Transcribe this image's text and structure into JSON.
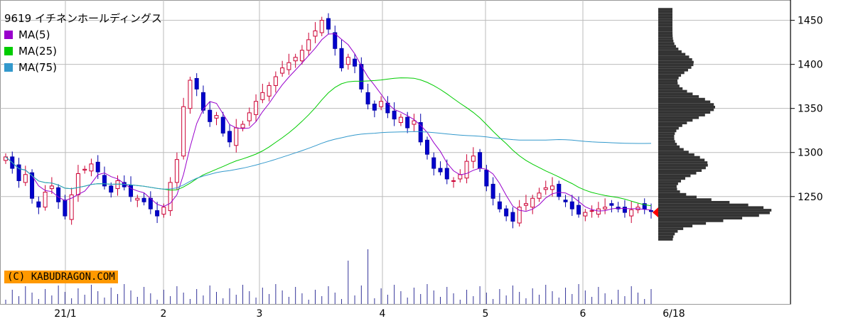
{
  "title": "9619 イチネンホールディングス",
  "credit": "(C) KABUDRAGON.COM",
  "legend": [
    {
      "label": "MA(5)",
      "color": "#9900cc"
    },
    {
      "label": "MA(25)",
      "color": "#00cc00"
    },
    {
      "label": "MA(75)",
      "color": "#3399cc"
    }
  ],
  "chart_data": {
    "type": "candlestick",
    "title": "9619 イチネンホールディングス",
    "y_ticks": [
      1250,
      1300,
      1350,
      1400,
      1450
    ],
    "ylim": [
      1195,
      1465
    ],
    "x_tick_labels": [
      "21/1",
      "2",
      "3",
      "4",
      "5",
      "6",
      "6/18"
    ],
    "grid": true,
    "candles_approx": [
      1295,
      1282,
      1268,
      1275,
      1248,
      1238,
      1255,
      1262,
      1244,
      1228,
      1252,
      1276,
      1281,
      1287,
      1278,
      1262,
      1255,
      1268,
      1261,
      1250,
      1248,
      1244,
      1236,
      1228,
      1238,
      1266,
      1292,
      1352,
      1382,
      1372,
      1348,
      1335,
      1342,
      1322,
      1312,
      1328,
      1332,
      1345,
      1358,
      1368,
      1376,
      1386,
      1396,
      1402,
      1408,
      1416,
      1428,
      1438,
      1450,
      1440,
      1418,
      1396,
      1408,
      1398,
      1372,
      1355,
      1348,
      1358,
      1345,
      1338,
      1340,
      1328,
      1336,
      1312,
      1298,
      1282,
      1278,
      1270,
      1268,
      1275,
      1290,
      1296,
      1282,
      1262,
      1248,
      1236,
      1228,
      1222,
      1238,
      1242,
      1248,
      1254,
      1260,
      1262,
      1250,
      1244,
      1236,
      1230,
      1232,
      1234,
      1236,
      1238,
      1240,
      1236,
      1232,
      1235,
      1238,
      1236,
      1233
    ],
    "volume_profile_peak": 1232,
    "current_marker": 1232
  }
}
